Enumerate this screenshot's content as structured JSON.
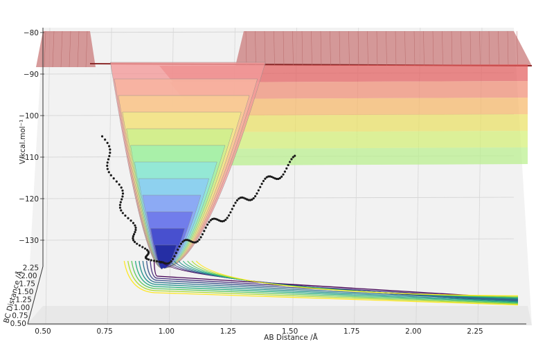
{
  "chart_data": {
    "type": "surface3d",
    "zlabel": "V/kcal.mol⁻¹",
    "xlabel": "AB Distance /Å",
    "ylabel": "BC Distance /Å",
    "z_ticks": [
      -80,
      -90,
      -100,
      -110,
      -120,
      -130
    ],
    "x_ticks": [
      "0.50",
      "0.75",
      "1.00",
      "1.25",
      "1.50",
      "1.75",
      "2.00",
      "2.25"
    ],
    "y_ticks": [
      "0.50",
      "0.75",
      "1.00",
      "1.25",
      "1.50",
      "1.75",
      "2.00",
      "2.25"
    ],
    "zlim": [
      -135,
      -79
    ],
    "xlim": [
      0.5,
      2.5
    ],
    "ylim": [
      0.5,
      2.5
    ],
    "potential_minimum": {
      "ab": 0.93,
      "bc": 0.75,
      "v": -135
    },
    "plateau_energy": -88,
    "colormap_surface": "jet (semi-transparent)",
    "colormap_contours": "viridis",
    "trajectory": {
      "style": "black dots",
      "start": {
        "ab": 0.74,
        "v": -105
      },
      "exit": {
        "ab": 1.52,
        "v": -111
      }
    }
  }
}
